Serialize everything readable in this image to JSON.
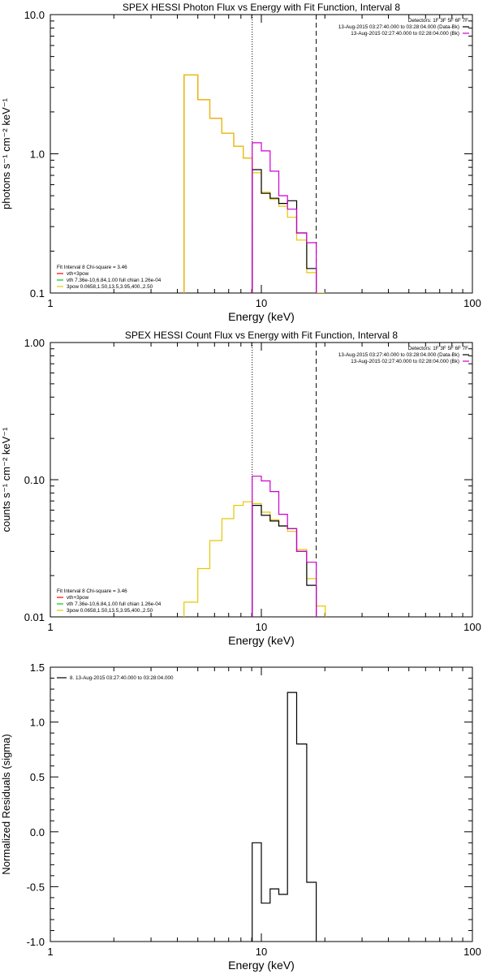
{
  "chart_data": [
    {
      "type": "line",
      "title": "SPEX HESSI Photon Flux vs Energy with Fit Function, Interval 8",
      "xlabel": "Energy (keV)",
      "ylabel": "photons s⁻¹ cm⁻² keV⁻¹",
      "x_scale": "log",
      "y_scale": "log",
      "xlim": [
        1,
        100
      ],
      "ylim": [
        0.1,
        10
      ],
      "x_ticks": [
        {
          "v": 1,
          "label": "1"
        },
        {
          "v": 10,
          "label": "10"
        },
        {
          "v": 100,
          "label": "100"
        }
      ],
      "y_ticks": [
        {
          "v": 0.1,
          "label": "0.1"
        },
        {
          "v": 1,
          "label": "1.0"
        },
        {
          "v": 10,
          "label": "10.0"
        }
      ],
      "vlines": [
        {
          "x": 9.05,
          "style": "dotted"
        },
        {
          "x": 18.2,
          "style": "dashed"
        }
      ],
      "info_top_right": [
        "Detectors: 1F 3F 5F 6F 7F",
        "13-Aug-2015 03:27:40.000 to 03:28:04.000 (Data-Bk)",
        "13-Aug-2015 02:27:40.000 to 02:28:04.000 (Bk)"
      ],
      "info_top_right_colors": [
        "",
        "#000000",
        "#cc00cc"
      ],
      "legend_bottom_left": [
        {
          "text": "Fit Interval 8   Chi-square = 3.46",
          "color": ""
        },
        {
          "text": "vth+3pow",
          "color": "#ff0000"
        },
        {
          "text": "vth 7.36e-10,6.84,1.00  full chian 1.26e-04",
          "color": "#00cc00"
        },
        {
          "text": "3pow 0.0658,1.50,13.5,3.95,400.,2.50",
          "color": "#e6c800"
        }
      ],
      "series": [
        {
          "role": "fit-total",
          "color": "#ff0000",
          "edges": [
            4.3,
            5.0,
            5.7,
            6.5,
            7.4,
            8.2,
            9.05
          ],
          "values": [
            3.7,
            2.45,
            1.8,
            1.4,
            1.13,
            0.93
          ]
        },
        {
          "role": "fit-3pow",
          "color": "#e6c800",
          "edges": [
            4.3,
            5.0,
            5.7,
            6.5,
            7.4,
            8.2,
            9.05,
            10.0,
            11.0,
            12.1,
            13.3,
            14.7,
            16.4,
            18.2,
            20.1
          ],
          "values": [
            3.7,
            2.45,
            1.8,
            1.4,
            1.13,
            0.93,
            0.73,
            0.53,
            0.47,
            0.42,
            0.35,
            0.24,
            0.14,
            0.1
          ]
        },
        {
          "role": "data-minus-background",
          "color": "#000000",
          "edges": [
            9.05,
            10.0,
            11.0,
            12.1,
            13.3,
            14.7,
            16.4,
            18.2
          ],
          "values": [
            0.77,
            0.52,
            0.48,
            0.44,
            0.46,
            0.27,
            0.15
          ]
        },
        {
          "role": "background",
          "color": "#cc00cc",
          "edges": [
            9.05,
            10.0,
            11.0,
            12.1,
            13.3,
            14.7,
            16.4,
            18.2
          ],
          "values": [
            1.2,
            1.05,
            0.75,
            0.5,
            0.4,
            0.27,
            0.23
          ]
        }
      ]
    },
    {
      "type": "line",
      "title": "SPEX HESSI Count Flux vs Energy with Fit Function, Interval 8",
      "xlabel": "Energy (keV)",
      "ylabel": "counts s⁻¹ cm⁻² keV⁻¹",
      "x_scale": "log",
      "y_scale": "log",
      "xlim": [
        1,
        100
      ],
      "ylim": [
        0.01,
        1
      ],
      "x_ticks": [
        {
          "v": 1,
          "label": "1"
        },
        {
          "v": 10,
          "label": "10"
        },
        {
          "v": 100,
          "label": "100"
        }
      ],
      "y_ticks": [
        {
          "v": 0.01,
          "label": "0.01"
        },
        {
          "v": 0.1,
          "label": "0.10"
        },
        {
          "v": 1,
          "label": "1.00"
        }
      ],
      "vlines": [
        {
          "x": 9.05,
          "style": "dotted"
        },
        {
          "x": 18.2,
          "style": "dashed"
        }
      ],
      "info_top_right": [
        "Detectors: 1F 3F 5F 6F 7F",
        "13-Aug-2015 03:27:40.000 to 03:28:04.000 (Data-Bk)",
        "13-Aug-2015 02:27:40.000 to 02:28:04.000 (Bk)"
      ],
      "info_top_right_colors": [
        "",
        "#000000",
        "#cc00cc"
      ],
      "legend_bottom_left": [
        {
          "text": "Fit Interval 8   Chi-square = 3.46",
          "color": ""
        },
        {
          "text": "vth+3pow",
          "color": "#ff0000"
        },
        {
          "text": "vth 7.36e-10,6.84,1.00  full chian 1.26e-04",
          "color": "#00cc00"
        },
        {
          "text": "3pow 0.0658,1.50,13.5,3.95,400.,2.50",
          "color": "#e6c800"
        }
      ],
      "series": [
        {
          "role": "fit-3pow",
          "color": "#e6c800",
          "edges": [
            4.3,
            5.0,
            5.7,
            6.5,
            7.4,
            8.2,
            9.05,
            10.0,
            11.0,
            12.1,
            13.3,
            14.7,
            16.4,
            18.2,
            20.1
          ],
          "values": [
            0.0128,
            0.0225,
            0.036,
            0.052,
            0.065,
            0.069,
            0.067,
            0.058,
            0.051,
            0.046,
            0.042,
            0.031,
            0.019,
            0.012
          ]
        },
        {
          "role": "data-minus-background",
          "color": "#000000",
          "edges": [
            9.05,
            10.0,
            11.0,
            12.1,
            13.3,
            14.7,
            16.4,
            18.2
          ],
          "values": [
            0.065,
            0.055,
            0.05,
            0.046,
            0.044,
            0.03,
            0.017
          ]
        },
        {
          "role": "background",
          "color": "#cc00cc",
          "edges": [
            9.05,
            10.0,
            11.0,
            12.1,
            13.3,
            14.7,
            16.4,
            18.2
          ],
          "values": [
            0.106,
            0.098,
            0.082,
            0.056,
            0.044,
            0.03,
            0.025
          ]
        }
      ]
    },
    {
      "type": "line",
      "title": "",
      "xlabel": "Energy (keV)",
      "ylabel": "Normalized Residuals (sigma)",
      "x_scale": "log",
      "y_scale": "linear",
      "xlim": [
        1,
        100
      ],
      "ylim": [
        -1.0,
        1.5
      ],
      "x_ticks": [
        {
          "v": 1,
          "label": "1"
        },
        {
          "v": 10,
          "label": "10"
        },
        {
          "v": 100,
          "label": "100"
        }
      ],
      "y_ticks": [
        {
          "v": -1.0,
          "label": "-1.0"
        },
        {
          "v": -0.5,
          "label": "-0.5"
        },
        {
          "v": 0.0,
          "label": "0.0"
        },
        {
          "v": 0.5,
          "label": "0.5"
        },
        {
          "v": 1.0,
          "label": "1.0"
        },
        {
          "v": 1.5,
          "label": "1.5"
        }
      ],
      "vlines": [],
      "info_top_right": [],
      "info_top_right_colors": [],
      "legend_top_left": [
        {
          "text": "8. 13-Aug-2015 03:27:40.000 to 03:28:04.000",
          "color": "#000000"
        }
      ],
      "series": [
        {
          "role": "residuals",
          "color": "#000000",
          "edges": [
            9.05,
            10.0,
            11.0,
            12.1,
            13.3,
            14.7,
            16.4,
            18.2
          ],
          "values": [
            -0.1,
            -0.65,
            -0.52,
            -0.57,
            1.27,
            0.8,
            -0.46
          ]
        }
      ]
    }
  ]
}
